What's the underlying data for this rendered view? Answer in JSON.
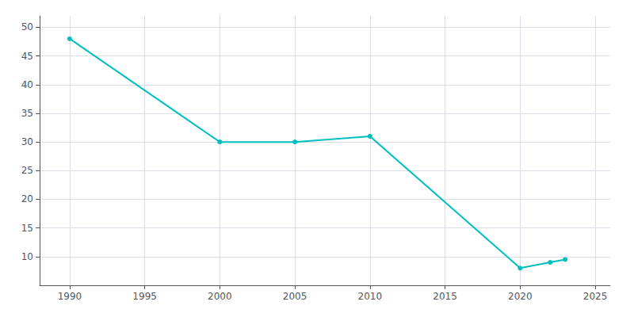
{
  "chart_data": {
    "type": "line",
    "x": [
      1990,
      2000,
      2005,
      2010,
      2020,
      2022,
      2023
    ],
    "values": [
      48,
      30,
      30,
      31,
      8,
      9,
      9.5
    ],
    "color": "#00BFBF",
    "marker": "circle",
    "xlim": [
      1988,
      2026
    ],
    "ylim": [
      5,
      52
    ],
    "xticks": [
      1990,
      1995,
      2000,
      2005,
      2010,
      2015,
      2020,
      2025
    ],
    "yticks": [
      10,
      15,
      20,
      25,
      30,
      35,
      40,
      45,
      50
    ],
    "grid": true
  }
}
